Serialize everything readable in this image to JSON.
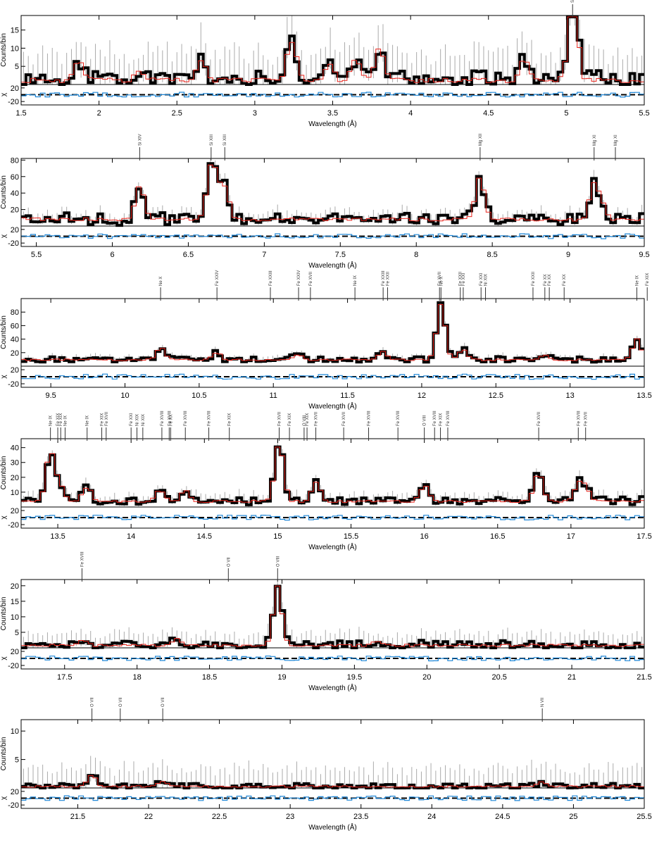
{
  "figure": {
    "colors": {
      "data": "#000000",
      "model": "#e8241c",
      "residual": "#1f86d6",
      "error_bar": "#aaaaaa",
      "zero_line": "#000000"
    }
  },
  "chart_data": [
    {
      "type": "line",
      "xlabel": "Wavelength (Å)",
      "ylabel": "Counts/bin",
      "reslabel": "χ",
      "xlim": [
        1.5,
        5.5
      ],
      "ylim": [
        0,
        19
      ],
      "yticks": [
        5,
        10,
        15
      ],
      "xticks": [
        1.5,
        2,
        2.5,
        3,
        3.5,
        4,
        4.5,
        5,
        5.5
      ],
      "res_ylim": [
        -30,
        30
      ],
      "res_ticks": [
        20,
        -20
      ],
      "baseline": 0.5,
      "noise": 2.5,
      "err": 8,
      "peaks": [
        [
          1.87,
          6
        ],
        [
          2.26,
          3
        ],
        [
          2.66,
          6
        ],
        [
          3.22,
          5
        ],
        [
          3.25,
          7
        ],
        [
          3.48,
          5
        ],
        [
          3.65,
          6
        ],
        [
          3.8,
          9
        ],
        [
          4.73,
          6
        ],
        [
          5.03,
          9
        ],
        [
          5.05,
          16
        ]
      ],
      "lines": [
        {
          "label": "S XV",
          "x": 5.04
        }
      ]
    },
    {
      "type": "line",
      "xlabel": "Wavelength (Å)",
      "ylabel": "Counts/bin",
      "reslabel": "χ",
      "xlim": [
        5.4,
        9.5
      ],
      "ylim": [
        0,
        82
      ],
      "yticks": [
        20,
        40,
        60,
        80
      ],
      "xticks": [
        5.5,
        6,
        6.5,
        7,
        7.5,
        8,
        8.5,
        9,
        9.5
      ],
      "res_ylim": [
        -30,
        30
      ],
      "res_ticks": [
        20,
        -20
      ],
      "baseline": 6,
      "noise": 8,
      "err": 10,
      "peaks": [
        [
          6.18,
          42
        ],
        [
          6.65,
          60
        ],
        [
          6.69,
          25
        ],
        [
          6.74,
          36
        ],
        [
          8.42,
          52
        ],
        [
          9.17,
          44
        ],
        [
          9.23,
          14
        ]
      ],
      "lines": [
        {
          "label": "Si XIV",
          "x": 6.18
        },
        {
          "label": "Si XIII",
          "x": 6.65
        },
        {
          "label": "Si XIII",
          "x": 6.74
        },
        {
          "label": "Mg XII",
          "x": 8.42
        },
        {
          "label": "Mg XI",
          "x": 9.17
        },
        {
          "label": "Mg XI",
          "x": 9.31
        }
      ]
    },
    {
      "type": "line",
      "xlabel": "Wavelength (Å)",
      "ylabel": "Counts/bin",
      "reslabel": "χ",
      "xlim": [
        9.3,
        13.5
      ],
      "ylim": [
        0,
        100
      ],
      "yticks": [
        20,
        40,
        60,
        80
      ],
      "xticks": [
        9.5,
        10,
        10.5,
        11,
        11.5,
        12,
        12.5,
        13,
        13.5
      ],
      "res_ylim": [
        -30,
        30
      ],
      "res_ticks": [
        20,
        -20
      ],
      "baseline": 8,
      "noise": 5,
      "err": 6,
      "peaks": [
        [
          10.24,
          18
        ],
        [
          10.62,
          10
        ],
        [
          11.17,
          8
        ],
        [
          11.74,
          12
        ],
        [
          12.13,
          82
        ],
        [
          12.28,
          16
        ],
        [
          12.82,
          7
        ],
        [
          13.45,
          30
        ]
      ],
      "lines": [
        {
          "label": "Ne X",
          "x": 10.24
        },
        {
          "label": "Fe XXIV",
          "x": 10.62
        },
        {
          "label": "Fe XXIII",
          "x": 10.98
        },
        {
          "label": "Fe XXIV",
          "x": 11.17
        },
        {
          "label": "Fe XVII",
          "x": 11.25
        },
        {
          "label": "Ne IX",
          "x": 11.55
        },
        {
          "label": "Fe XXIII",
          "x": 11.74
        },
        {
          "label": "Fe XXII",
          "x": 11.77
        },
        {
          "label": "Fe XVII",
          "x": 12.12
        },
        {
          "label": "Ne X",
          "x": 12.13
        },
        {
          "label": "Fe XXI",
          "x": 12.28
        },
        {
          "label": "Fe XXII",
          "x": 12.26
        },
        {
          "label": "Fe XXI",
          "x": 12.4
        },
        {
          "label": "Ni XIX",
          "x": 12.43
        },
        {
          "label": "Fe XXII",
          "x": 12.75
        },
        {
          "label": "Fe XX",
          "x": 12.83
        },
        {
          "label": "Fe XX",
          "x": 12.86
        },
        {
          "label": "Fe XX",
          "x": 12.96
        },
        {
          "label": "Ne IX",
          "x": 13.45
        },
        {
          "label": "Fe XIX",
          "x": 13.52
        }
      ]
    },
    {
      "type": "line",
      "xlabel": "Wavelength (Å)",
      "ylabel": "Counts/bin",
      "reslabel": "χ",
      "xlim": [
        13.25,
        17.5
      ],
      "ylim": [
        0,
        46
      ],
      "yticks": [
        10,
        20,
        30,
        40
      ],
      "xticks": [
        13.5,
        14,
        14.5,
        15,
        15.5,
        16,
        16.5,
        17,
        17.5
      ],
      "res_ylim": [
        -30,
        30
      ],
      "res_ticks": [
        20,
        -20
      ],
      "baseline": 3,
      "noise": 3,
      "err": 5,
      "peaks": [
        [
          13.45,
          34
        ],
        [
          13.52,
          10
        ],
        [
          13.7,
          10
        ],
        [
          14.2,
          8
        ],
        [
          14.37,
          8
        ],
        [
          15.01,
          40
        ],
        [
          15.26,
          13
        ],
        [
          16.0,
          11
        ],
        [
          16.78,
          19
        ],
        [
          17.05,
          11
        ],
        [
          17.1,
          9
        ]
      ],
      "lines": [
        {
          "label": "Ne IX",
          "x": 13.45
        },
        {
          "label": "Fe XIX",
          "x": 13.5
        },
        {
          "label": "Fe XIX",
          "x": 13.52
        },
        {
          "label": "Ne IX",
          "x": 13.55
        },
        {
          "label": "Ne IX",
          "x": 13.7
        },
        {
          "label": "Fe XIX",
          "x": 13.8
        },
        {
          "label": "Fe XVII",
          "x": 13.83
        },
        {
          "label": "Fe XXI",
          "x": 14.0
        },
        {
          "label": "Ni XIX",
          "x": 14.04
        },
        {
          "label": "Ni XIX",
          "x": 14.08
        },
        {
          "label": "Fe XVIII",
          "x": 14.21
        },
        {
          "label": "Fe XVIII",
          "x": 14.26
        },
        {
          "label": "Fe XX",
          "x": 14.27
        },
        {
          "label": "Fe XVIII",
          "x": 14.37
        },
        {
          "label": "Fe XVIII",
          "x": 14.53
        },
        {
          "label": "Fe XIX",
          "x": 14.67
        },
        {
          "label": "Fe XVII",
          "x": 15.01
        },
        {
          "label": "Fe XIX",
          "x": 15.08
        },
        {
          "label": "O VIII",
          "x": 15.18
        },
        {
          "label": "Fe XIX",
          "x": 15.2
        },
        {
          "label": "Fe XVII",
          "x": 15.26
        },
        {
          "label": "Fe XVII",
          "x": 15.45
        },
        {
          "label": "Fe XVIII",
          "x": 15.62
        },
        {
          "label": "Fe XVIII",
          "x": 15.82
        },
        {
          "label": "O VIII",
          "x": 16.0
        },
        {
          "label": "Fe XVIII",
          "x": 16.07
        },
        {
          "label": "Fe XIX",
          "x": 16.11
        },
        {
          "label": "Fe XVIII",
          "x": 16.16
        },
        {
          "label": "Fe XVII",
          "x": 16.78
        },
        {
          "label": "Fe XVIII",
          "x": 17.05
        },
        {
          "label": "Fe XVII",
          "x": 17.1
        }
      ]
    },
    {
      "type": "line",
      "xlabel": "Wavelength (Å)",
      "ylabel": "Counts/bin",
      "reslabel": "χ",
      "xlim": [
        17.2,
        21.5
      ],
      "ylim": [
        0,
        22
      ],
      "yticks": [
        5,
        10,
        15,
        20
      ],
      "xticks": [
        17.5,
        18,
        18.5,
        19,
        19.5,
        20,
        20.5,
        21,
        21.5
      ],
      "res_ylim": [
        -30,
        30
      ],
      "res_ticks": [
        20,
        -20
      ],
      "baseline": 0.4,
      "noise": 1.5,
      "err": 4,
      "peaks": [
        [
          17.62,
          2
        ],
        [
          18.27,
          2
        ],
        [
          18.97,
          19
        ],
        [
          19.65,
          1.5
        ]
      ],
      "lines": [
        {
          "label": "Fe XVIII",
          "x": 17.62
        },
        {
          "label": "O VII",
          "x": 18.63
        },
        {
          "label": "O VIII",
          "x": 18.97
        }
      ]
    },
    {
      "type": "line",
      "xlabel": "Wavelength (Å)",
      "ylabel": "Counts/bin",
      "reslabel": "χ",
      "xlim": [
        21.1,
        25.5
      ],
      "ylim": [
        0,
        12
      ],
      "yticks": [
        5,
        10
      ],
      "xticks": [
        21.5,
        22,
        22.5,
        23,
        23.5,
        24,
        24.5,
        25,
        25.5
      ],
      "res_ylim": [
        -30,
        30
      ],
      "res_ticks": [
        20,
        -20
      ],
      "baseline": 0.1,
      "noise": 0.6,
      "err": 3.5,
      "peaks": [
        [
          21.6,
          2
        ],
        [
          22.1,
          0.8
        ],
        [
          24.78,
          0.8
        ]
      ],
      "lines": [
        {
          "label": "O VII",
          "x": 21.6
        },
        {
          "label": "O VII",
          "x": 21.8
        },
        {
          "label": "O VII",
          "x": 22.1
        },
        {
          "label": "N VII",
          "x": 24.78
        }
      ]
    }
  ]
}
